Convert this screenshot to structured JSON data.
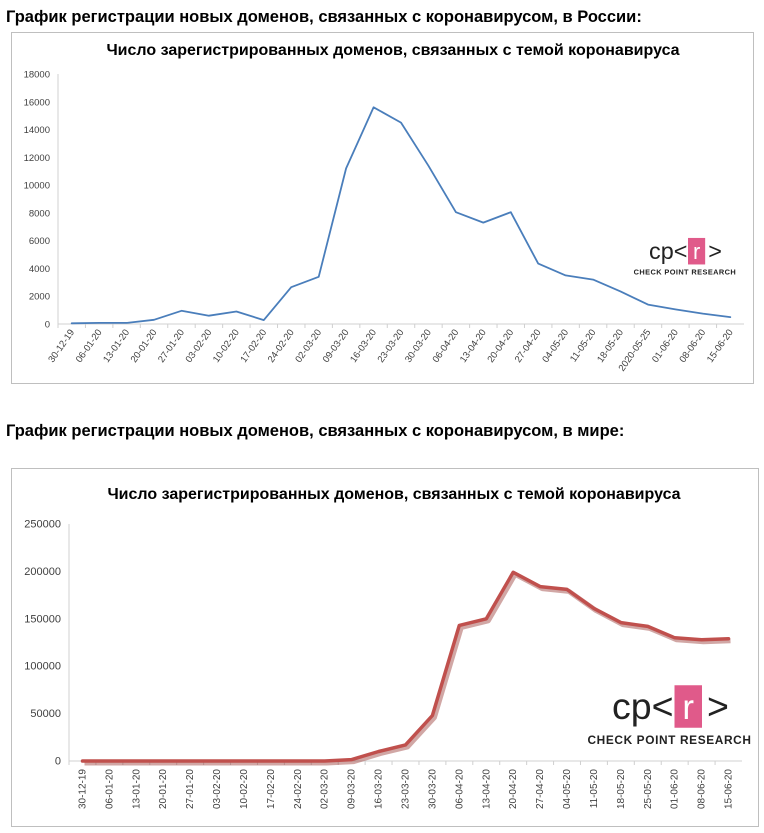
{
  "headings": {
    "russia": "График регистрации новых доменов, связанных с коронавирусом, в России:",
    "world": "График регистрации новых доменов, связанных с коронавирусом, в мире:"
  },
  "logo": {
    "text": "cp<r>",
    "subtitle": "CHECK POINT RESEARCH",
    "accent": "#e05a8a"
  },
  "chart_data": [
    {
      "type": "line",
      "title": "Число зарегистрированных доменов, связанных с темой коронавируса",
      "xlabel": "",
      "ylabel": "",
      "categories": [
        "30-12-19",
        "06-01-20",
        "13-01-20",
        "20-01-20",
        "27-01-20",
        "03-02-20",
        "10-02-20",
        "17-02-20",
        "24-02-20",
        "02-03-20",
        "09-03-20",
        "16-03-20",
        "23-03-20",
        "30-03-20",
        "06-04-20",
        "13-04-20",
        "20-04-20",
        "27-04-20",
        "04-05-20",
        "11-05-20",
        "18-05-20",
        "2020-05-25",
        "01-06-20",
        "08-06-20",
        "15-06-20"
      ],
      "values": [
        50,
        80,
        80,
        300,
        950,
        600,
        900,
        280,
        2650,
        3400,
        11200,
        15600,
        14500,
        11400,
        8050,
        7300,
        8050,
        4350,
        3500,
        3200,
        2350,
        1400,
        1050,
        750,
        500
      ],
      "ylim": [
        0,
        18000
      ],
      "yticks": [
        "0",
        "2000",
        "4000",
        "6000",
        "8000",
        "10000",
        "12000",
        "14000",
        "16000",
        "18000"
      ],
      "color": "#4a7ebb",
      "grid": false,
      "legend": "none"
    },
    {
      "type": "line",
      "title": "Число зарегистрированных доменов, связанных с темой коронавируса",
      "xlabel": "",
      "ylabel": "",
      "categories": [
        "30-12-19",
        "06-01-20",
        "13-01-20",
        "20-01-20",
        "27-01-20",
        "03-02-20",
        "10-02-20",
        "17-02-20",
        "24-02-20",
        "02-03-20",
        "09-03-20",
        "16-03-20",
        "23-03-20",
        "30-03-20",
        "06-04-20",
        "13-04-20",
        "20-04-20",
        "27-04-20",
        "04-05-20",
        "11-05-20",
        "18-05-20",
        "25-05-20",
        "01-06-20",
        "08-06-20",
        "15-06-20"
      ],
      "values": [
        0,
        0,
        0,
        0,
        0,
        0,
        0,
        0,
        0,
        0,
        1500,
        10000,
        17000,
        48000,
        143000,
        150000,
        199000,
        184000,
        181000,
        161000,
        146000,
        142000,
        130000,
        128000,
        129000
      ],
      "ylim": [
        0,
        250000
      ],
      "yticks": [
        "0",
        "50000",
        "100000",
        "150000",
        "200000",
        "250000"
      ],
      "color": "#c0504d",
      "grid": false,
      "legend": "none"
    }
  ]
}
